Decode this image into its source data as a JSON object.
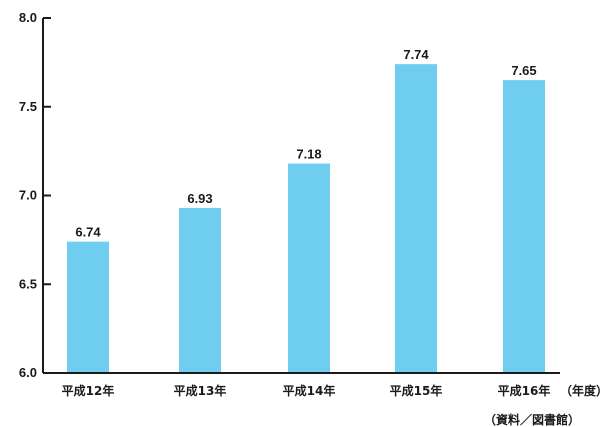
{
  "chart_data": {
    "type": "bar",
    "categories": [
      "平成12年",
      "平成13年",
      "平成14年",
      "平成15年",
      "平成16年"
    ],
    "values": [
      6.74,
      6.93,
      7.18,
      7.74,
      7.65
    ],
    "value_labels": [
      "6.74",
      "6.93",
      "7.18",
      "7.74",
      "7.65"
    ],
    "ylim": [
      6.0,
      8.0
    ],
    "yticks": [
      6.0,
      6.5,
      7.0,
      7.5,
      8.0
    ],
    "ytick_labels": [
      "6.0",
      "6.5",
      "7.0",
      "7.5",
      "8.0"
    ],
    "x_unit": "（年度）",
    "source": "（資料／図書館）",
    "title": "",
    "xlabel": "",
    "ylabel": "",
    "grid": false,
    "legend": "none",
    "bar_color": "#6fcdf0",
    "axis_color": "#1a1a1a"
  }
}
